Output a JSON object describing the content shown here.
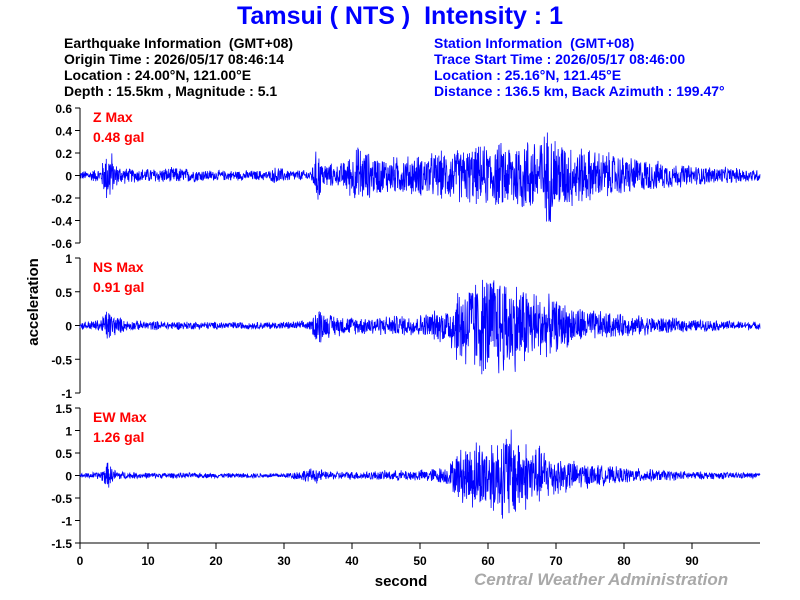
{
  "title": "Tamsui ( NTS )  Intensity : 1",
  "earthquake_info": {
    "heading": "Earthquake Information  (GMT+08)",
    "origin_time": "Origin Time : 2026/05/17 08:46:14",
    "location": "Location : 24.00°N, 121.00°E",
    "depth_magnitude": "Depth : 15.5km , Magnitude : 5.1"
  },
  "station_info": {
    "heading": "Station Information  (GMT+08)",
    "trace_start": "Trace Start Time : 2026/05/17 08:46:00",
    "location": "Location : 25.16°N, 121.45°E",
    "distance": "Distance : 136.5 km, Back Azimuth : 199.47°"
  },
  "credit": "Central Weather Administration",
  "colors": {
    "title": "#0000ff",
    "trace": "#0000ff",
    "max_label": "#ff0000",
    "station_text": "#0000ff",
    "credit": "#a9a9a9"
  },
  "chart_data": {
    "type": "line",
    "xlabel": "second",
    "ylabel": "acceleration",
    "xlim": [
      0,
      100
    ],
    "x_ticks": [
      0,
      10,
      20,
      30,
      40,
      50,
      60,
      70,
      80,
      90
    ],
    "grid": false,
    "series": [
      {
        "name": "Z",
        "max_label": "Z Max",
        "max_value": "0.48 gal",
        "ylim": [
          -0.6,
          0.6
        ],
        "y_ticks": [
          "-0.6",
          "-0.4",
          "-0.2",
          "0",
          "0.2",
          "0.4",
          "0.6"
        ],
        "y_tick_values": [
          -0.6,
          -0.4,
          -0.2,
          0,
          0.2,
          0.4,
          0.6
        ],
        "envelope": [
          [
            0,
            0.04
          ],
          [
            3,
            0.07
          ],
          [
            4,
            0.28
          ],
          [
            4.5,
            0.3
          ],
          [
            5,
            0.12
          ],
          [
            7,
            0.07
          ],
          [
            10,
            0.07
          ],
          [
            14,
            0.08
          ],
          [
            20,
            0.05
          ],
          [
            28,
            0.05
          ],
          [
            29,
            0.1
          ],
          [
            30,
            0.06
          ],
          [
            34,
            0.05
          ],
          [
            35,
            0.32
          ],
          [
            35.5,
            0.14
          ],
          [
            38,
            0.1
          ],
          [
            40,
            0.22
          ],
          [
            41,
            0.3
          ],
          [
            43,
            0.2
          ],
          [
            45,
            0.18
          ],
          [
            50,
            0.2
          ],
          [
            55,
            0.26
          ],
          [
            60,
            0.3
          ],
          [
            63,
            0.34
          ],
          [
            66,
            0.38
          ],
          [
            68,
            0.4
          ],
          [
            69,
            0.48
          ],
          [
            71,
            0.34
          ],
          [
            75,
            0.26
          ],
          [
            80,
            0.2
          ],
          [
            85,
            0.14
          ],
          [
            90,
            0.1
          ],
          [
            95,
            0.08
          ],
          [
            100,
            0.06
          ]
        ]
      },
      {
        "name": "NS",
        "max_label": "NS Max",
        "max_value": "0.91 gal",
        "ylim": [
          -1,
          1
        ],
        "y_ticks": [
          "-1",
          "-0.5",
          "0",
          "0.5",
          "1"
        ],
        "y_tick_values": [
          -1,
          -0.5,
          0,
          0.5,
          1
        ],
        "envelope": [
          [
            0,
            0.06
          ],
          [
            3,
            0.1
          ],
          [
            4,
            0.3
          ],
          [
            5,
            0.18
          ],
          [
            7,
            0.08
          ],
          [
            20,
            0.06
          ],
          [
            30,
            0.06
          ],
          [
            34,
            0.08
          ],
          [
            35,
            0.38
          ],
          [
            36,
            0.2
          ],
          [
            40,
            0.14
          ],
          [
            45,
            0.16
          ],
          [
            50,
            0.18
          ],
          [
            54,
            0.3
          ],
          [
            56,
            0.72
          ],
          [
            59,
            0.82
          ],
          [
            61,
            0.9
          ],
          [
            63,
            0.78
          ],
          [
            65,
            0.7
          ],
          [
            68,
            0.52
          ],
          [
            72,
            0.34
          ],
          [
            76,
            0.24
          ],
          [
            80,
            0.18
          ],
          [
            85,
            0.14
          ],
          [
            90,
            0.1
          ],
          [
            95,
            0.08
          ],
          [
            100,
            0.06
          ]
        ]
      },
      {
        "name": "EW",
        "max_label": "EW Max",
        "max_value": "1.26 gal",
        "ylim": [
          -1.5,
          1.5
        ],
        "y_ticks": [
          "-1.5",
          "-1",
          "-0.5",
          "0",
          "0.5",
          "1",
          "1.5"
        ],
        "y_tick_values": [
          -1.5,
          -1,
          -0.5,
          0,
          0.5,
          1,
          1.5
        ],
        "envelope": [
          [
            0,
            0.05
          ],
          [
            3,
            0.1
          ],
          [
            4,
            0.34
          ],
          [
            5,
            0.15
          ],
          [
            7,
            0.08
          ],
          [
            20,
            0.06
          ],
          [
            30,
            0.06
          ],
          [
            35,
            0.2
          ],
          [
            36,
            0.1
          ],
          [
            40,
            0.1
          ],
          [
            45,
            0.12
          ],
          [
            50,
            0.14
          ],
          [
            54,
            0.22
          ],
          [
            56,
            0.68
          ],
          [
            58,
            0.88
          ],
          [
            60,
            0.9
          ],
          [
            62,
            1.0
          ],
          [
            63,
            1.26
          ],
          [
            65,
            0.9
          ],
          [
            67,
            0.78
          ],
          [
            70,
            0.5
          ],
          [
            73,
            0.34
          ],
          [
            78,
            0.22
          ],
          [
            85,
            0.14
          ],
          [
            90,
            0.1
          ],
          [
            100,
            0.07
          ]
        ]
      }
    ]
  }
}
